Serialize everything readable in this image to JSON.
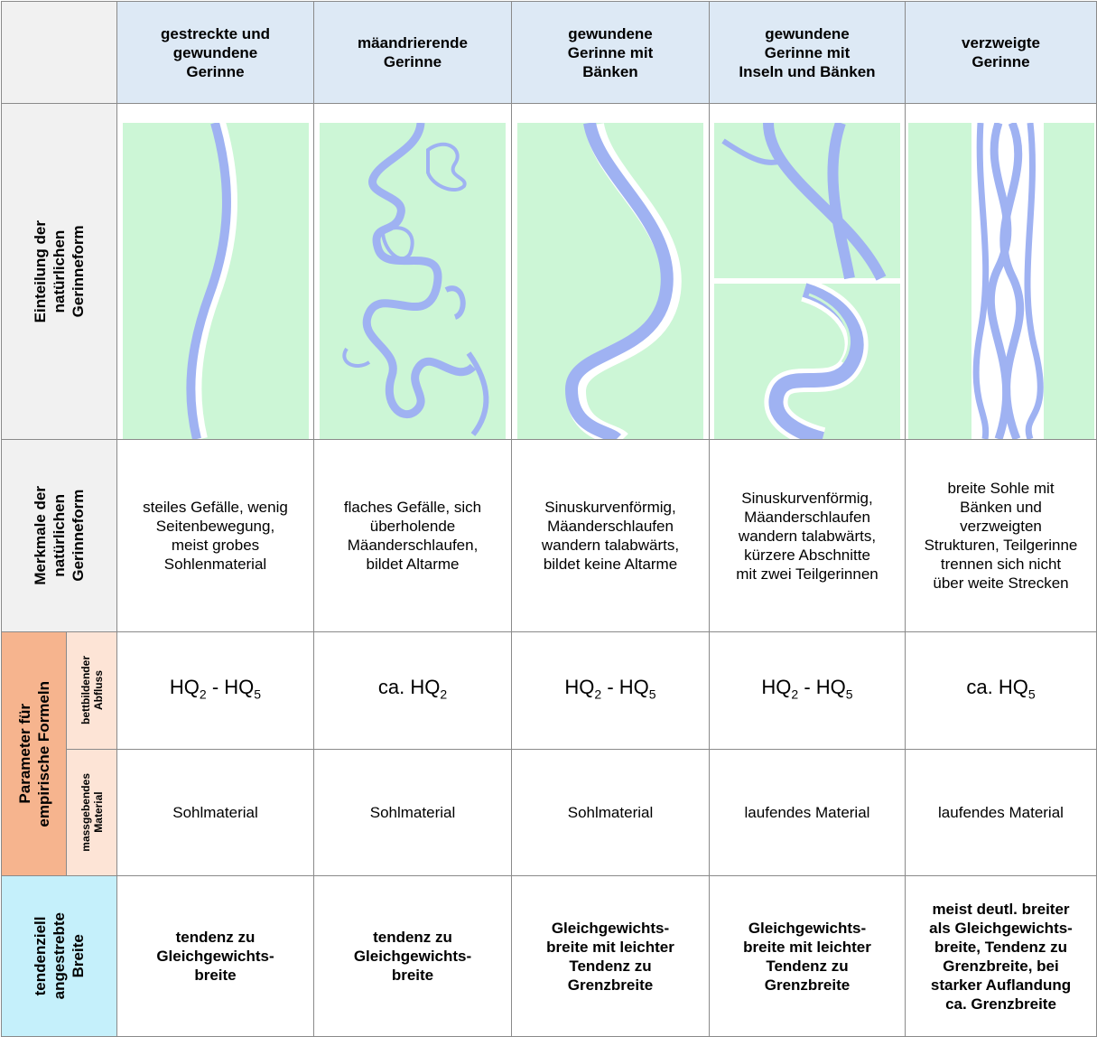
{
  "header_row": {
    "columns": [
      "gestreckte und\ngewundene\nGerinne",
      "mäandrierende\nGerinne",
      "gewundene\nGerinne mit\nBänken",
      "gewundene\nGerinne mit\nInseln und Bänken",
      "verzweigte\nGerinne"
    ]
  },
  "form_row": {
    "label": "Einteilung der\nnatürlichen\nGerinneform"
  },
  "features_row": {
    "label": "Merkmale der\nnatürlichen\nGerinneform",
    "cells": [
      "steiles Gefälle, wenig\nSeitenbewegung,\nmeist grobes\nSohlenmaterial",
      "flaches Gefälle, sich\nüberholende\nMäanderschlaufen,\nbildet Altarme",
      "Sinuskurvenförmig,\nMäanderschlaufen\nwandern talabwärts,\nbildet keine Altarme",
      "Sinuskurvenförmig,\nMäanderschlaufen\nwandern talabwärts,\nkürzere Abschnitte\nmit zwei Teilgerinnen",
      "breite Sohle mit\nBänken und\nverzweigten\nStrukturen, Teilgerinne\ntrennen sich nicht\nüber weite Strecken"
    ]
  },
  "parameters": {
    "label": "Parameter für\nempirische Formeln",
    "discharge": {
      "label": "bettbildender\nAbfluss",
      "cells": [
        [
          "HQ",
          {
            "sub": "2"
          },
          " - HQ",
          {
            "sub": "5"
          }
        ],
        [
          "ca. HQ",
          {
            "sub": "2"
          }
        ],
        [
          "HQ",
          {
            "sub": "2"
          },
          " - HQ",
          {
            "sub": "5"
          }
        ],
        [
          "HQ",
          {
            "sub": "2"
          },
          " - HQ",
          {
            "sub": "5"
          }
        ],
        [
          "ca. HQ",
          {
            "sub": "5"
          }
        ]
      ]
    },
    "material": {
      "label": "massgebendes\nMaterial",
      "cells": [
        "Sohlmaterial",
        "Sohlmaterial",
        "Sohlmaterial",
        "laufendes Material",
        "laufendes Material"
      ]
    }
  },
  "width_row": {
    "label": "tendenziell\nangestrebte\nBreite",
    "cells": [
      "tendenz zu\nGleichgewichts-\nbreite",
      "tendenz zu\nGleichgewichts-\nbreite",
      "Gleichgewichts-\nbreite mit leichter\nTendenz zu\nGrenzbreite",
      "Gleichgewichts-\nbreite mit leichter\nTendenz zu\nGrenzbreite",
      "meist deutl. breiter\nals Gleichgewichts-\nbreite, Tendenz zu\nGrenzbreite, bei\nstarker Auflandung\nca. Grenzbreite"
    ]
  }
}
